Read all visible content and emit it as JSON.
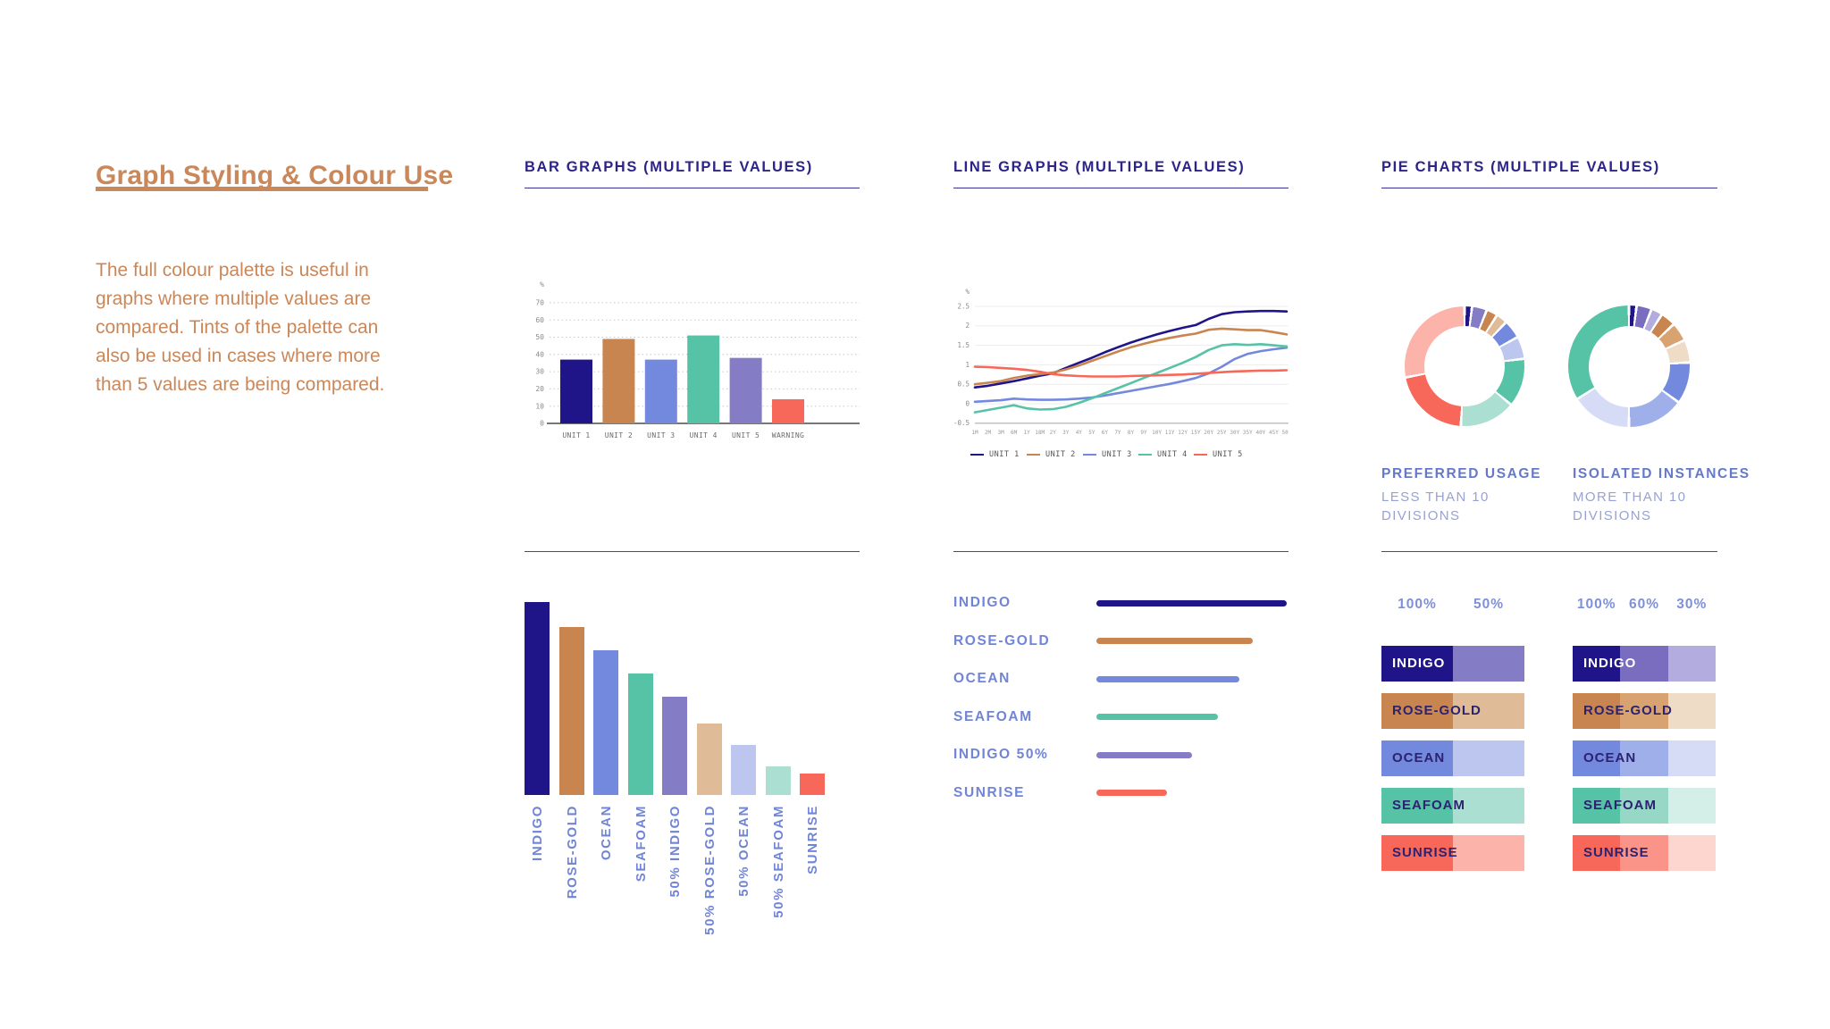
{
  "intro": {
    "title": "Graph Styling & Colour Use",
    "body": "The full colour palette is useful in graphs where multiple values are compared. Tints of the palette can also be used in cases where more than 5 values are being compared."
  },
  "sections": {
    "bar_graphs": {
      "heading": "BAR GRAPHS (MULTIPLE VALUES)"
    },
    "line_graphs": {
      "heading": "LINE GRAPHS (MULTIPLE VALUES)"
    },
    "pie_charts": {
      "heading": "PIE CHARTS (MULTIPLE VALUES)"
    }
  },
  "palette": {
    "indigo": "#201489",
    "indigo_50": "#857cc6",
    "indigo_60": "#7a6cbf",
    "indigo_30": "#b3addf",
    "rose_gold": "#c9854f",
    "rose_gold_50": "#e0bb97",
    "rose_gold_60": "#d8a370",
    "rose_gold_30": "#efdcc7",
    "ocean": "#7389dd",
    "ocean_50": "#bcc6ef",
    "ocean_60": "#9fafe9",
    "ocean_30": "#d7dcf6",
    "seafoam": "#57c3a6",
    "seafoam_50": "#abdfd1",
    "seafoam_60": "#96d7c5",
    "seafoam_30": "#d3efe8",
    "sunrise": "#f8685a",
    "sunrise_50": "#fcb3aa",
    "sunrise_60": "#fa9488",
    "sunrise_30": "#fdd6d0",
    "heading_text": "#2d2489",
    "rose_text": "#c9875a",
    "periwinkle_text": "#7185d6",
    "caption_title_text": "#6478cc",
    "caption_sub_text": "#97a2d4",
    "percent_header_text": "#7e90d8",
    "swatch_label_dark": "#2b2270",
    "axis_gray": "#8a8a8a",
    "axis_dark": "#4a4a4a",
    "grid_dotted": "#c9c9c9"
  },
  "pie_captions": [
    {
      "title": "PREFERRED USAGE",
      "subtitle": "LESS THAN 10 DIVISIONS"
    },
    {
      "title": "ISOLATED INSTANCES",
      "subtitle": "MORE THAN 10 DIVISIONS"
    }
  ],
  "tint_tables": [
    {
      "columns": [
        "100%",
        "50%"
      ],
      "rows": [
        {
          "label": "INDIGO",
          "colors": [
            "indigo",
            "indigo_50"
          ],
          "label_color": "#ffffff"
        },
        {
          "label": "ROSE-GOLD",
          "colors": [
            "rose_gold",
            "rose_gold_50"
          ],
          "label_color": "#2b2270"
        },
        {
          "label": "OCEAN",
          "colors": [
            "ocean",
            "ocean_50"
          ],
          "label_color": "#2b2270"
        },
        {
          "label": "SEAFOAM",
          "colors": [
            "seafoam",
            "seafoam_50"
          ],
          "label_color": "#2b2270"
        },
        {
          "label": "SUNRISE",
          "colors": [
            "sunrise",
            "sunrise_50"
          ],
          "label_color": "#2b2270"
        }
      ]
    },
    {
      "columns": [
        "100%",
        "60%",
        "30%"
      ],
      "rows": [
        {
          "label": "INDIGO",
          "colors": [
            "indigo",
            "indigo_60",
            "indigo_30"
          ],
          "label_color": "#ffffff"
        },
        {
          "label": "ROSE-GOLD",
          "colors": [
            "rose_gold",
            "rose_gold_60",
            "rose_gold_30"
          ],
          "label_color": "#2b2270"
        },
        {
          "label": "OCEAN",
          "colors": [
            "ocean",
            "ocean_60",
            "ocean_30"
          ],
          "label_color": "#2b2270"
        },
        {
          "label": "SEAFOAM",
          "colors": [
            "seafoam",
            "seafoam_60",
            "seafoam_30"
          ],
          "label_color": "#2b2270"
        },
        {
          "label": "SUNRISE",
          "colors": [
            "sunrise",
            "sunrise_60",
            "sunrise_30"
          ],
          "label_color": "#2b2270"
        }
      ]
    }
  ],
  "chart_data": [
    {
      "id": "bar-multi",
      "type": "bar",
      "title": "BAR GRAPHS (MULTIPLE VALUES)",
      "ylabel": "%",
      "ylim": [
        0,
        75
      ],
      "yticks": [
        0,
        10,
        20,
        30,
        40,
        50,
        60,
        70
      ],
      "grid": "dotted-horizontal",
      "categories": [
        "UNIT 1",
        "UNIT 2",
        "UNIT 3",
        "UNIT 4",
        "UNIT 5",
        "WARNING"
      ],
      "values": [
        37,
        49,
        37,
        51,
        38,
        14
      ],
      "colors": [
        "indigo",
        "rose_gold",
        "ocean",
        "seafoam",
        "indigo_50",
        "sunrise"
      ]
    },
    {
      "id": "line-multi",
      "type": "line",
      "title": "LINE GRAPHS (MULTIPLE VALUES)",
      "ylabel": "%",
      "ylim": [
        -0.5,
        2.5
      ],
      "yticks": [
        -0.5,
        0,
        0.5,
        1,
        1.5,
        2,
        2.5
      ],
      "grid": "light-horizontal",
      "legend_position": "bottom",
      "x": [
        "1M",
        "2M",
        "3M",
        "6M",
        "1Y",
        "18M",
        "2Y",
        "3Y",
        "4Y",
        "5Y",
        "6Y",
        "7Y",
        "8Y",
        "9Y",
        "10Y",
        "11Y",
        "12Y",
        "15Y",
        "20Y",
        "25Y",
        "30Y",
        "35Y",
        "40Y",
        "45Y",
        "50Y"
      ],
      "series": [
        {
          "name": "UNIT 1",
          "color": "indigo",
          "values": [
            0.42,
            0.46,
            0.52,
            0.58,
            0.65,
            0.72,
            0.78,
            0.92,
            1.05,
            1.18,
            1.32,
            1.45,
            1.57,
            1.68,
            1.78,
            1.87,
            1.95,
            2.02,
            2.18,
            2.3,
            2.35,
            2.37,
            2.38,
            2.38,
            2.37
          ]
        },
        {
          "name": "UNIT 2",
          "color": "rose_gold",
          "values": [
            0.5,
            0.54,
            0.58,
            0.66,
            0.72,
            0.76,
            0.8,
            0.88,
            0.98,
            1.1,
            1.22,
            1.34,
            1.45,
            1.54,
            1.62,
            1.69,
            1.75,
            1.8,
            1.9,
            1.93,
            1.91,
            1.89,
            1.89,
            1.84,
            1.78
          ]
        },
        {
          "name": "UNIT 3",
          "color": "ocean",
          "values": [
            0.05,
            0.07,
            0.09,
            0.13,
            0.11,
            0.1,
            0.1,
            0.11,
            0.13,
            0.16,
            0.21,
            0.27,
            0.33,
            0.39,
            0.45,
            0.51,
            0.58,
            0.66,
            0.78,
            0.95,
            1.15,
            1.28,
            1.35,
            1.4,
            1.44
          ]
        },
        {
          "name": "UNIT 4",
          "color": "seafoam",
          "values": [
            -0.22,
            -0.16,
            -0.1,
            -0.04,
            -0.12,
            -0.15,
            -0.14,
            -0.08,
            0.02,
            0.14,
            0.27,
            0.4,
            0.53,
            0.66,
            0.79,
            0.92,
            1.05,
            1.2,
            1.38,
            1.5,
            1.53,
            1.51,
            1.53,
            1.5,
            1.47
          ]
        },
        {
          "name": "UNIT 5",
          "color": "sunrise",
          "values": [
            0.95,
            0.94,
            0.92,
            0.9,
            0.87,
            0.82,
            0.76,
            0.73,
            0.71,
            0.7,
            0.7,
            0.7,
            0.71,
            0.72,
            0.73,
            0.74,
            0.75,
            0.77,
            0.79,
            0.81,
            0.83,
            0.84,
            0.85,
            0.85,
            0.86
          ]
        }
      ]
    },
    {
      "id": "bar-ranked",
      "type": "bar",
      "title": "Colour ranking bars",
      "categories": [
        "INDIGO",
        "ROSE-GOLD",
        "OCEAN",
        "SEAFOAM",
        "50% INDIGO",
        "50% ROSE-GOLD",
        "50% OCEAN",
        "50% SEAFOAM",
        "SUNRISE"
      ],
      "values": [
        100,
        87,
        75,
        63,
        51,
        37,
        26,
        15,
        11
      ],
      "colors": [
        "indigo",
        "rose_gold",
        "ocean",
        "seafoam",
        "indigo_50",
        "rose_gold_50",
        "ocean_50",
        "seafoam_50",
        "sunrise"
      ]
    },
    {
      "id": "bar-horizontal",
      "type": "bar",
      "orientation": "horizontal",
      "title": "Colour ranking horizontal bars",
      "categories": [
        "INDIGO",
        "ROSE-GOLD",
        "OCEAN",
        "SEAFOAM",
        "INDIGO 50%",
        "SUNRISE"
      ],
      "values": [
        100,
        82,
        75,
        64,
        50,
        37
      ],
      "colors": [
        "indigo",
        "rose_gold",
        "ocean",
        "seafoam",
        "indigo_50",
        "sunrise"
      ]
    },
    {
      "id": "pie-preferred",
      "type": "pie",
      "title": "PREFERRED USAGE",
      "subtitle": "LESS THAN 10 DIVISIONS",
      "slices": [
        {
          "color": "indigo",
          "value": 2
        },
        {
          "color": "indigo_50",
          "value": 4
        },
        {
          "color": "rose_gold",
          "value": 3
        },
        {
          "color": "rose_gold_50",
          "value": 3
        },
        {
          "color": "ocean",
          "value": 5
        },
        {
          "color": "ocean_50",
          "value": 6
        },
        {
          "color": "seafoam",
          "value": 13
        },
        {
          "color": "seafoam_50",
          "value": 15
        },
        {
          "color": "sunrise",
          "value": 21
        },
        {
          "color": "sunrise_50",
          "value": 28
        }
      ]
    },
    {
      "id": "pie-isolated",
      "type": "pie",
      "title": "ISOLATED INSTANCES",
      "subtitle": "MORE THAN 10 DIVISIONS",
      "slices": [
        {
          "color": "indigo",
          "value": 2
        },
        {
          "color": "indigo_60",
          "value": 4
        },
        {
          "color": "indigo_30",
          "value": 3
        },
        {
          "color": "rose_gold",
          "value": 4
        },
        {
          "color": "rose_gold_60",
          "value": 5
        },
        {
          "color": "rose_gold_30",
          "value": 6
        },
        {
          "color": "ocean",
          "value": 11
        },
        {
          "color": "ocean_60",
          "value": 15
        },
        {
          "color": "ocean_30",
          "value": 16
        },
        {
          "color": "seafoam",
          "value": 34
        }
      ]
    }
  ]
}
